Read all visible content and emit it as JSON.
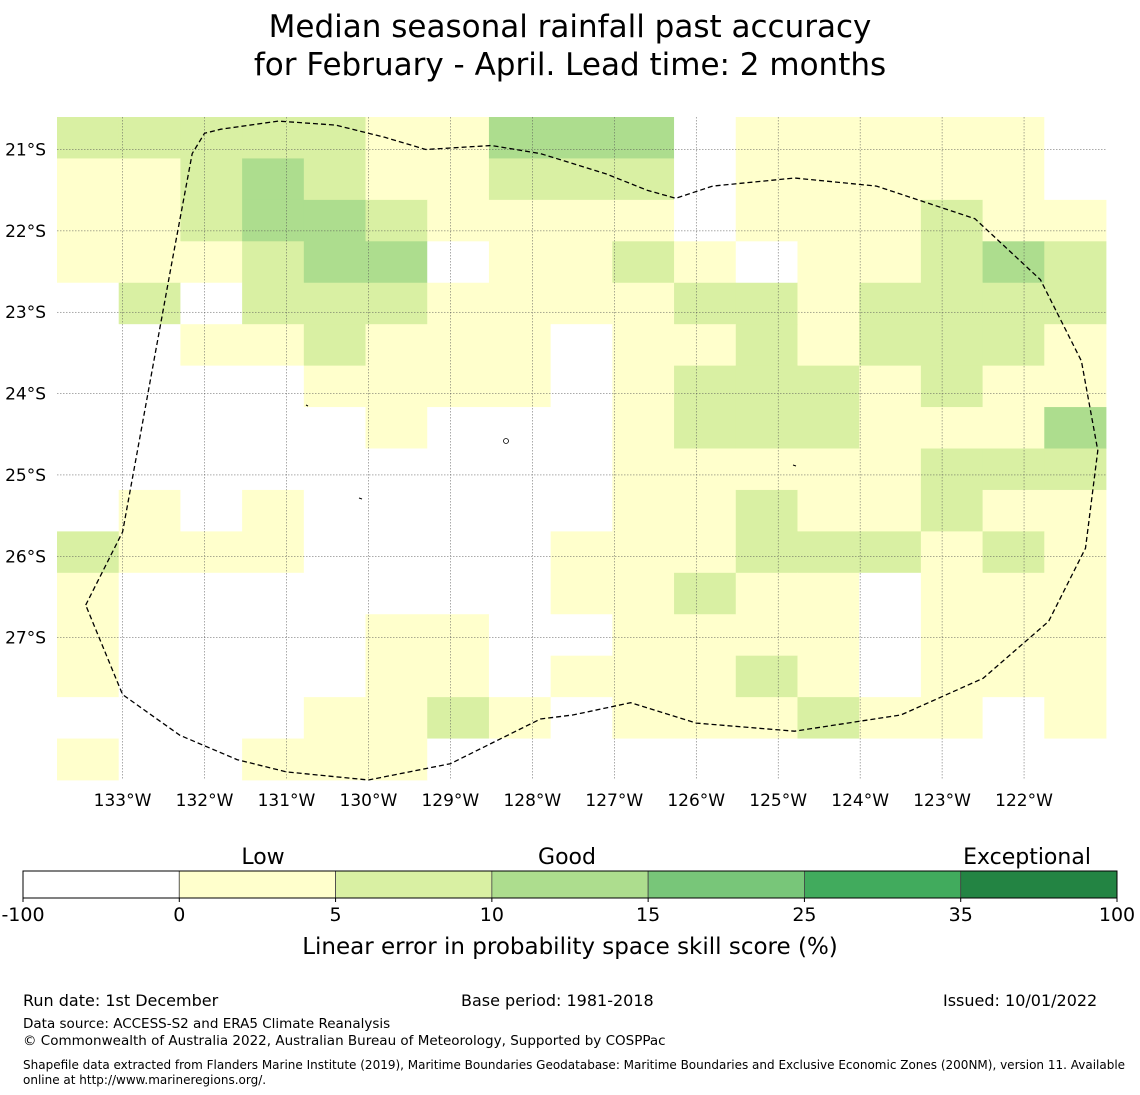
{
  "title": {
    "line1": "Median seasonal rainfall past accuracy",
    "line2": "for February - April. Lead time: 2 months"
  },
  "chart_data": {
    "type": "heatmap",
    "title": "Median seasonal rainfall past accuracy for February - April. Lead time: 2 months",
    "x_ticks": [
      "133°W",
      "132°W",
      "131°W",
      "130°W",
      "129°W",
      "128°W",
      "127°W",
      "126°W",
      "125°W",
      "124°W",
      "123°W",
      "122°W"
    ],
    "y_ticks": [
      "21°S",
      "22°S",
      "23°S",
      "24°S",
      "25°S",
      "26°S",
      "27°S"
    ],
    "xlim_deg_west": [
      133.8,
      121.0
    ],
    "ylim_deg_south": [
      20.6,
      28.75
    ],
    "grid": true,
    "cell_size_deg": [
      0.83,
      0.56
    ],
    "cell_note": "each value is the skill-score class index of a grid cell: 0 = below 0 (white), 1 = 0-5, 2 = 5-10, 3 = 10-15",
    "cells": [
      [
        2,
        2,
        2,
        2,
        2,
        1,
        1,
        3,
        3,
        3,
        0,
        1,
        1,
        1,
        1,
        1,
        0
      ],
      [
        1,
        1,
        2,
        3,
        2,
        1,
        1,
        2,
        2,
        2,
        0,
        1,
        1,
        1,
        1,
        1,
        0
      ],
      [
        1,
        1,
        2,
        3,
        3,
        2,
        1,
        1,
        1,
        1,
        0,
        1,
        1,
        1,
        2,
        1,
        1
      ],
      [
        1,
        1,
        1,
        2,
        3,
        3,
        0,
        1,
        1,
        2,
        1,
        0,
        1,
        1,
        2,
        3,
        2
      ],
      [
        0,
        2,
        0,
        2,
        2,
        2,
        1,
        1,
        1,
        1,
        2,
        2,
        1,
        2,
        2,
        2,
        2
      ],
      [
        0,
        0,
        1,
        1,
        2,
        1,
        1,
        1,
        0,
        1,
        1,
        2,
        1,
        2,
        2,
        2,
        1
      ],
      [
        0,
        0,
        0,
        0,
        1,
        1,
        1,
        1,
        0,
        1,
        2,
        2,
        2,
        1,
        2,
        1,
        1
      ],
      [
        0,
        0,
        0,
        0,
        0,
        1,
        0,
        0,
        0,
        1,
        2,
        2,
        2,
        1,
        1,
        1,
        3
      ],
      [
        0,
        0,
        0,
        0,
        0,
        0,
        0,
        0,
        0,
        1,
        1,
        1,
        1,
        1,
        2,
        2,
        2
      ],
      [
        0,
        1,
        0,
        1,
        0,
        0,
        0,
        0,
        0,
        1,
        1,
        2,
        1,
        1,
        2,
        1,
        1
      ],
      [
        2,
        1,
        1,
        1,
        0,
        0,
        0,
        0,
        1,
        1,
        1,
        2,
        2,
        2,
        1,
        2,
        1
      ],
      [
        1,
        0,
        0,
        0,
        0,
        0,
        0,
        0,
        1,
        1,
        2,
        1,
        1,
        0,
        1,
        1,
        1
      ],
      [
        1,
        0,
        0,
        0,
        0,
        1,
        1,
        0,
        0,
        1,
        1,
        1,
        1,
        0,
        1,
        1,
        1
      ],
      [
        1,
        0,
        0,
        0,
        0,
        1,
        1,
        0,
        1,
        1,
        1,
        2,
        1,
        0,
        1,
        1,
        1
      ],
      [
        0,
        0,
        0,
        0,
        1,
        1,
        2,
        1,
        0,
        1,
        1,
        1,
        2,
        1,
        1,
        0,
        1
      ],
      [
        1,
        0,
        0,
        1,
        1,
        1,
        0,
        0,
        0,
        0,
        0,
        0,
        0,
        0,
        0,
        0,
        0
      ]
    ],
    "boundary_note": "dashed exclusive economic zone outline (lon °W, lat °S)",
    "boundary": [
      [
        133.45,
        26.6
      ],
      [
        133.0,
        25.7
      ],
      [
        132.4,
        22.4
      ],
      [
        132.15,
        21.05
      ],
      [
        132.0,
        20.8
      ],
      [
        131.8,
        20.75
      ],
      [
        131.1,
        20.65
      ],
      [
        130.4,
        20.7
      ],
      [
        129.8,
        20.85
      ],
      [
        129.3,
        21.0
      ],
      [
        128.5,
        20.95
      ],
      [
        127.9,
        21.05
      ],
      [
        127.1,
        21.3
      ],
      [
        126.6,
        21.5
      ],
      [
        126.25,
        21.6
      ],
      [
        125.8,
        21.45
      ],
      [
        124.8,
        21.35
      ],
      [
        123.8,
        21.45
      ],
      [
        122.6,
        21.85
      ],
      [
        121.8,
        22.6
      ],
      [
        121.3,
        23.6
      ],
      [
        121.1,
        24.7
      ],
      [
        121.25,
        25.9
      ],
      [
        121.7,
        26.8
      ],
      [
        122.5,
        27.5
      ],
      [
        123.5,
        27.95
      ],
      [
        124.8,
        28.15
      ],
      [
        126.0,
        28.05
      ],
      [
        126.8,
        27.8
      ],
      [
        127.5,
        27.95
      ],
      [
        127.9,
        28.0
      ],
      [
        128.4,
        28.25
      ],
      [
        129.0,
        28.55
      ],
      [
        130.0,
        28.75
      ],
      [
        131.0,
        28.65
      ],
      [
        131.6,
        28.5
      ],
      [
        132.3,
        28.2
      ],
      [
        133.0,
        27.7
      ],
      [
        133.45,
        26.6
      ]
    ],
    "colorbar": {
      "label": "Linear error in probability space skill score (%)",
      "tick_labels": [
        "-100",
        "0",
        "5",
        "10",
        "15",
        "25",
        "35",
        "100"
      ],
      "colors": [
        "#ffffff",
        "#ffffcc",
        "#d9f0a3",
        "#addd8e",
        "#78c679",
        "#41ab5d",
        "#238443"
      ],
      "categories": [
        "Low",
        "Good",
        "Exceptional"
      ]
    }
  },
  "footer": {
    "run_date": "Run date: 1st December",
    "base_period": "Base period: 1981-2018",
    "issued": "Issued: 10/01/2022",
    "data_source": "Data source: ACCESS-S2 and ERA5 Climate Reanalysis",
    "copyright": "© Commonwealth of Australia 2022, Australian Bureau of Meteorology, Supported by COSPPac",
    "shapefile": "Shapefile data extracted from Flanders Marine Institute (2019), Maritime Boundaries Geodatabase: Maritime Boundaries and Exclusive Economic Zones (200NM), version 11. Available online at http://www.marineregions.org/."
  }
}
